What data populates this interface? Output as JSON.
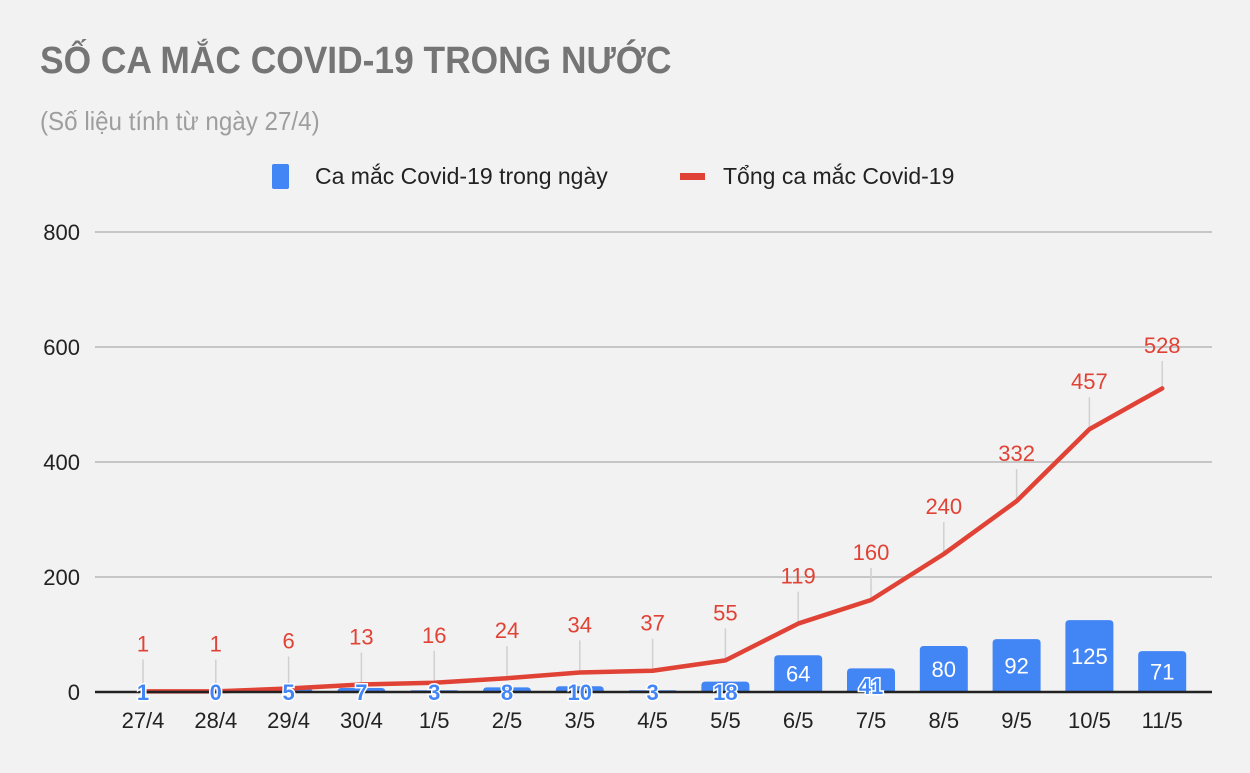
{
  "title": "SỐ CA MẮC COVID-19 TRONG NƯỚC",
  "subtitle": "(Số liệu tính từ ngày 27/4)",
  "legend": [
    {
      "label": "Ca mắc Covid-19 trong ngày",
      "color": "#4285f4",
      "kind": "bar"
    },
    {
      "label": "Tổng ca mắc Covid-19",
      "color": "#e04336",
      "kind": "line"
    }
  ],
  "colors": {
    "bar": "#4285f4",
    "line": "#e04336",
    "grid": "#c6c6c6",
    "axis": "#222222",
    "background": "#f2f2f2"
  },
  "chart_data": {
    "type": "bar+line",
    "title": "SỐ CA MẮC COVID-19 TRONG NƯỚC",
    "subtitle": "(Số liệu tính từ ngày 27/4)",
    "categories": [
      "27/4",
      "28/4",
      "29/4",
      "30/4",
      "1/5",
      "2/5",
      "3/5",
      "4/5",
      "5/5",
      "6/5",
      "7/5",
      "8/5",
      "9/5",
      "10/5",
      "11/5"
    ],
    "series": [
      {
        "name": "Ca mắc Covid-19 trong ngày",
        "type": "bar",
        "values": [
          1,
          0,
          5,
          7,
          3,
          8,
          10,
          3,
          18,
          64,
          41,
          80,
          92,
          125,
          71
        ]
      },
      {
        "name": "Tổng ca mắc Covid-19",
        "type": "line",
        "values": [
          1,
          1,
          6,
          13,
          16,
          24,
          34,
          37,
          55,
          119,
          160,
          240,
          332,
          457,
          528
        ]
      }
    ],
    "yticks": [
      0,
      200,
      400,
      600,
      800
    ],
    "ylim": [
      0,
      800
    ],
    "xlabel": "",
    "ylabel": "",
    "grid": true,
    "legend_position": "top"
  }
}
